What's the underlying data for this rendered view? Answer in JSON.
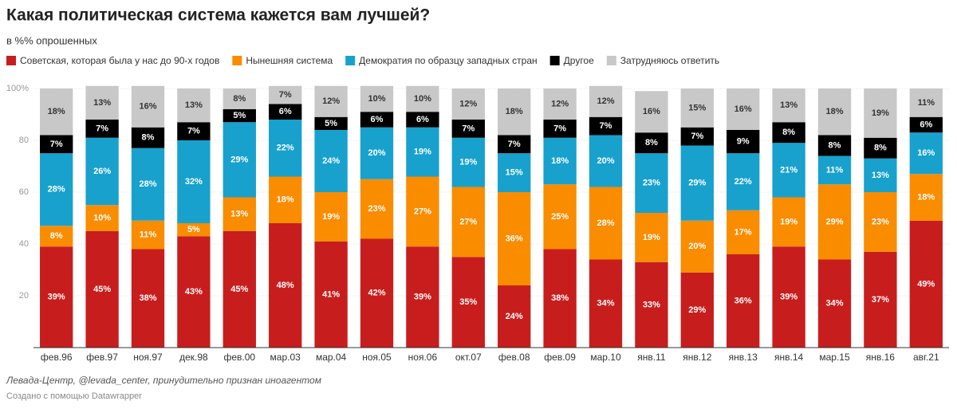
{
  "chart_data": {
    "type": "stacked_bar",
    "title": "Какая политическая система кажется вам лучшей?",
    "subtitle": "в %% опрошенных",
    "source": "Левада-Центр, @levada_center, принудительно признан иноагентом",
    "credit": "Создано с помощью Datawrapper",
    "categories": [
      "фев.96",
      "фев.97",
      "ноя.97",
      "дек.98",
      "фев.00",
      "мар.03",
      "мар.04",
      "ноя.05",
      "ноя.06",
      "окт.07",
      "фев.08",
      "фев.09",
      "мар.10",
      "янв.11",
      "янв.12",
      "янв.13",
      "янв.14",
      "мар.15",
      "янв.16",
      "авг.21"
    ],
    "ylim": [
      0,
      100
    ],
    "yticks": [
      20,
      40,
      60,
      80,
      {
        "value": 100,
        "label": "100%"
      }
    ],
    "grid": true,
    "legend": "top-left",
    "series": [
      {
        "name": "Советская, которая была у нас до 90-х годов",
        "color": "#c71e1d",
        "values": [
          39,
          45,
          38,
          43,
          45,
          48,
          41,
          42,
          39,
          35,
          24,
          38,
          34,
          33,
          29,
          36,
          39,
          34,
          37,
          49
        ],
        "value_labels": [
          "39%",
          "45%",
          "38%",
          "43%",
          "45%",
          "48%",
          "41%",
          "42%",
          "39%",
          "35%",
          "24%",
          "38%",
          "34%",
          "33%",
          "29%",
          "36%",
          "39%",
          "34%",
          "37%",
          "49%"
        ]
      },
      {
        "name": "Нынешняя система",
        "color": "#fa8c00",
        "values": [
          8,
          10,
          11,
          5,
          13,
          18,
          19,
          23,
          27,
          27,
          36,
          25,
          28,
          19,
          20,
          17,
          19,
          29,
          23,
          18
        ],
        "value_labels": [
          "8%",
          "10%",
          "11%",
          "5%",
          "13%",
          "18%",
          "19%",
          "23%",
          "27%",
          "27%",
          "36%",
          "25%",
          "28%",
          "19%",
          "20%",
          "17%",
          "19%",
          "29%",
          "23%",
          "18%"
        ]
      },
      {
        "name": "Демократия по образцу западных стран",
        "color": "#18a1cd",
        "values": [
          28,
          26,
          28,
          32,
          29,
          22,
          24,
          20,
          19,
          19,
          15,
          18,
          20,
          23,
          29,
          22,
          21,
          11,
          13,
          16
        ],
        "value_labels": [
          "28%",
          "26%",
          "28%",
          "32%",
          "29%",
          "22%",
          "24%",
          "20%",
          "19%",
          "19%",
          "15%",
          "18%",
          "20%",
          "23%",
          "29%",
          "22%",
          "21%",
          "11%",
          "13%",
          "16%"
        ]
      },
      {
        "name": "Другое",
        "color": "#000000",
        "values": [
          7,
          7,
          8,
          7,
          5,
          6,
          5,
          6,
          6,
          7,
          7,
          7,
          7,
          8,
          7,
          9,
          8,
          8,
          8,
          6
        ],
        "value_labels": [
          "7%",
          "7%",
          "8%",
          "7%",
          "5%",
          "6%",
          "5%",
          "6%",
          "6%",
          "7%",
          "7%",
          "7%",
          "7%",
          "8%",
          "7%",
          "9%",
          "8%",
          "8%",
          "8%",
          "6%"
        ]
      },
      {
        "name": "Затрудняюсь ответить",
        "color": "#c8c8c8",
        "values": [
          18,
          13,
          16,
          13,
          8,
          7,
          12,
          10,
          10,
          12,
          18,
          12,
          12,
          16,
          15,
          16,
          13,
          18,
          19,
          11
        ],
        "value_labels": [
          "18%",
          "13%",
          "16%",
          "13%",
          "8%",
          "7%",
          "12%",
          "10%",
          "10%",
          "12%",
          "18%",
          "12%",
          "12%",
          "16%",
          "15%",
          "16%",
          "13%",
          "18%",
          "19%",
          "11%"
        ]
      }
    ]
  }
}
